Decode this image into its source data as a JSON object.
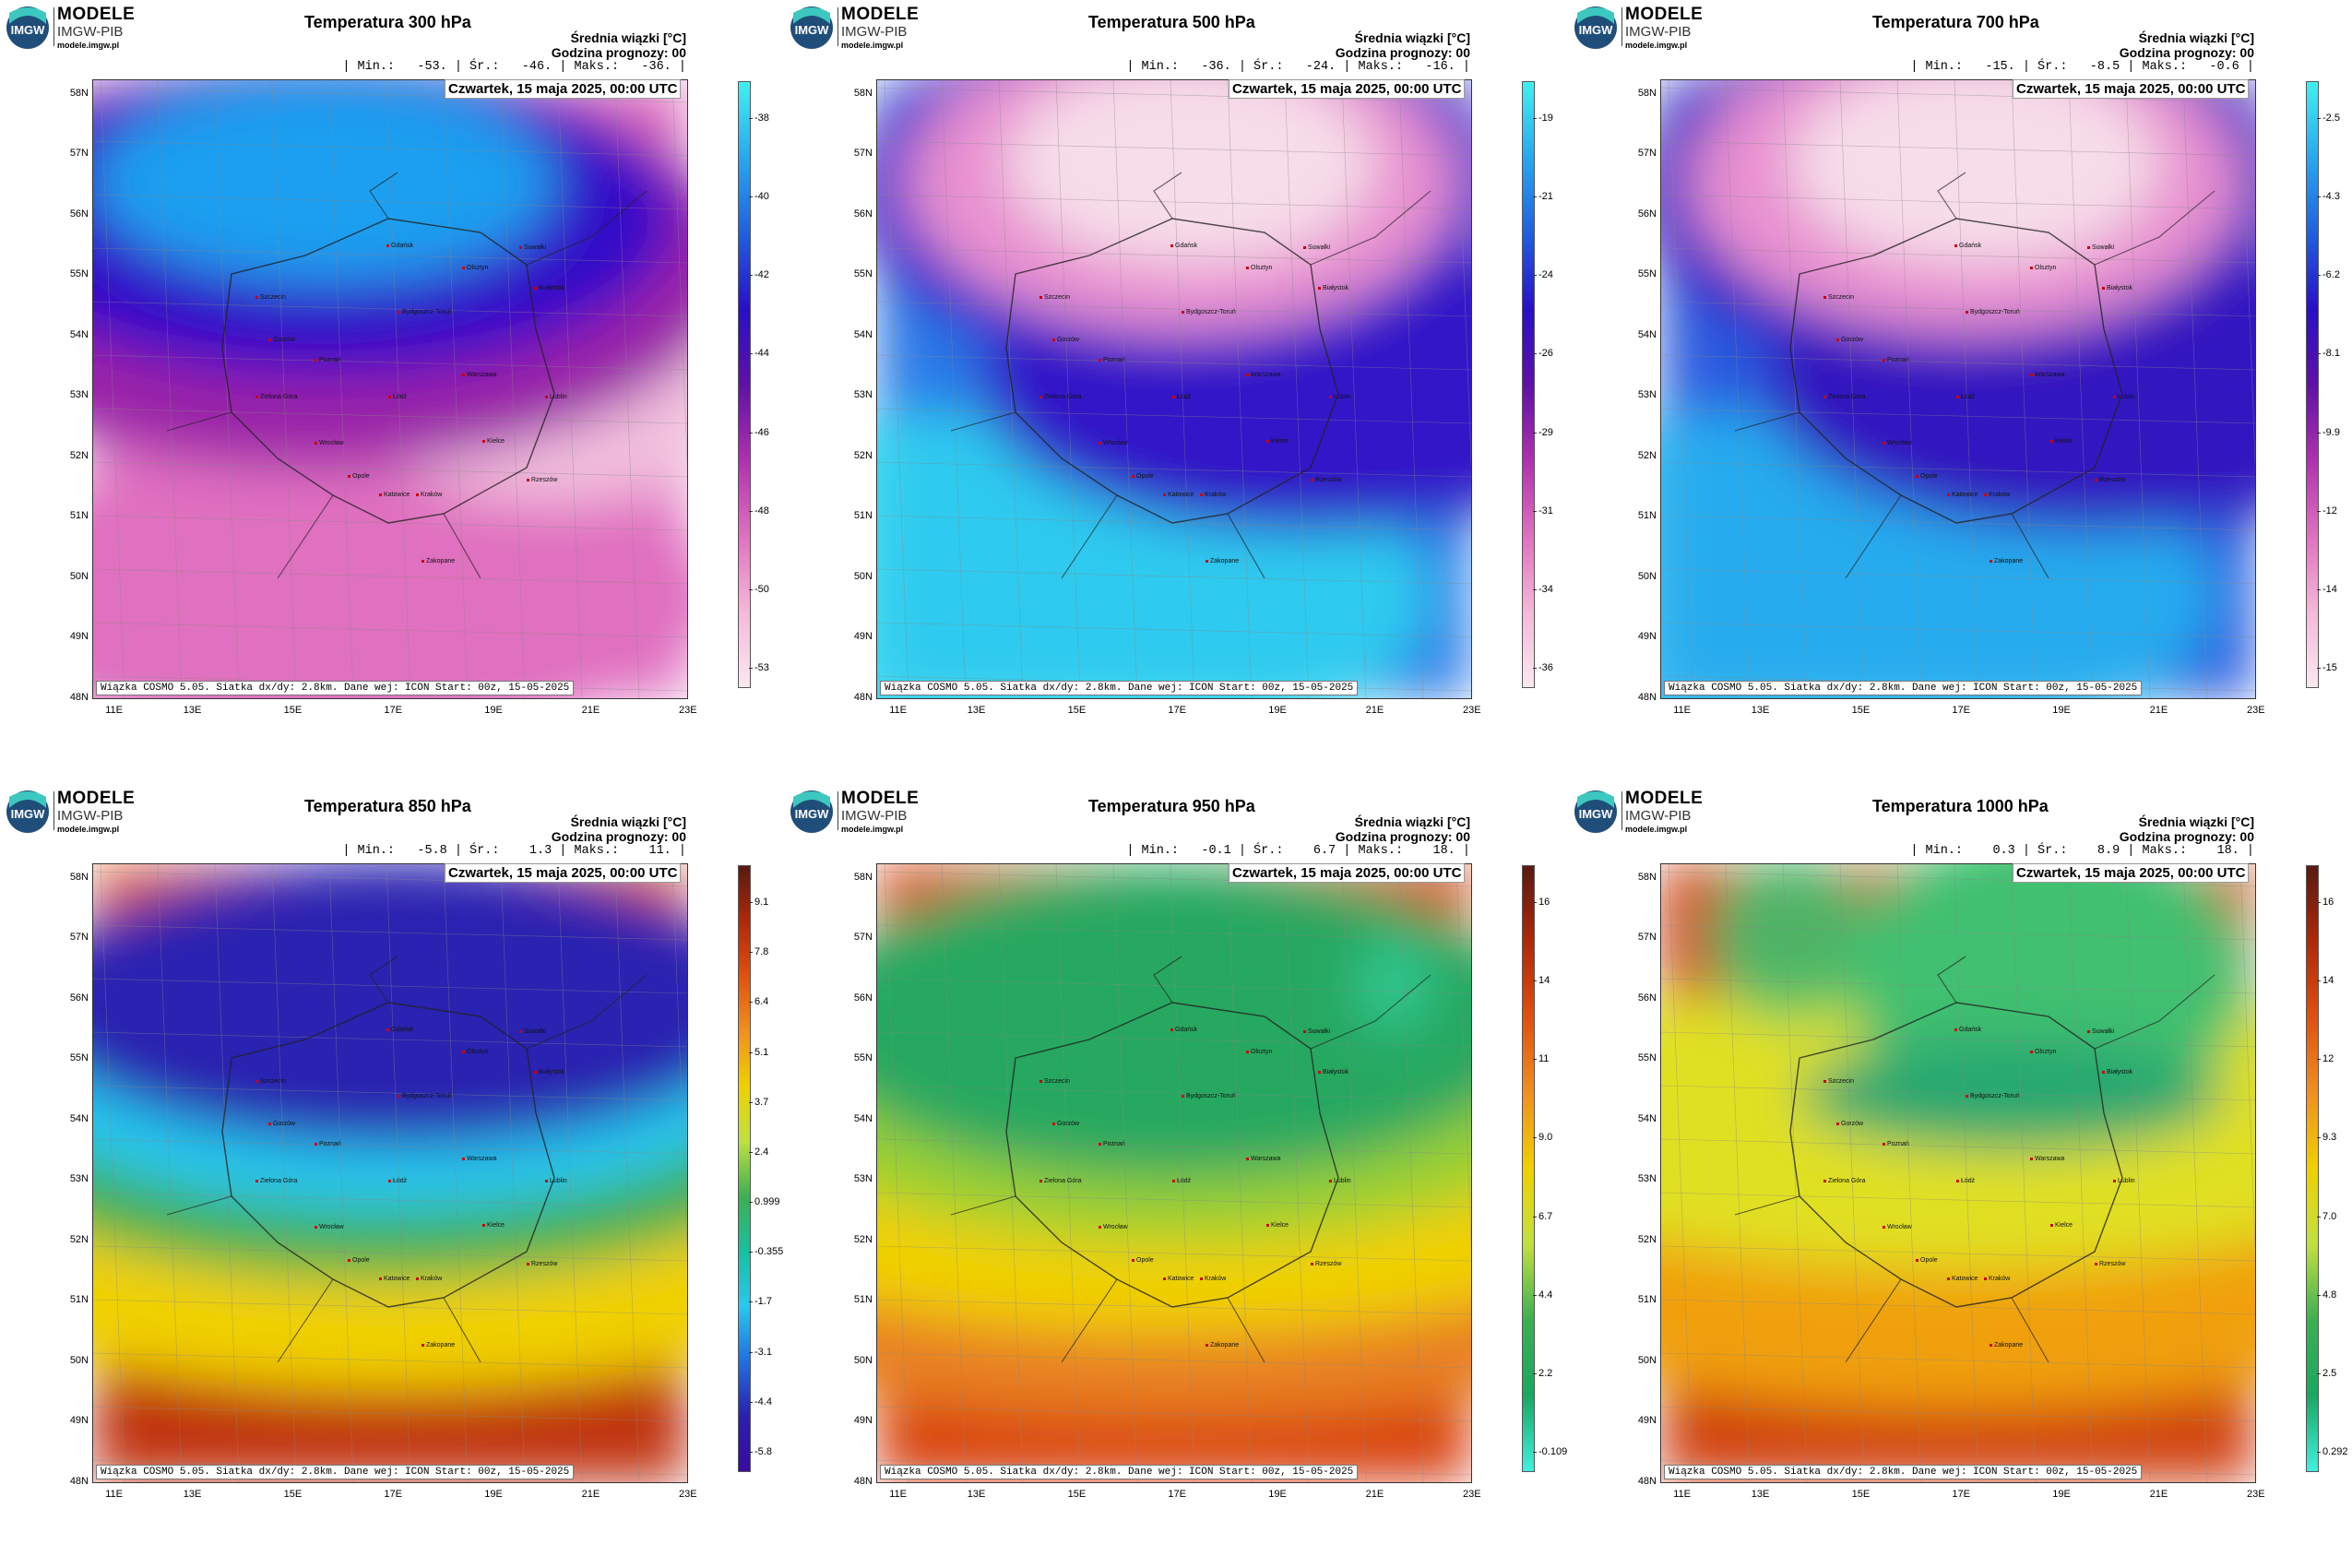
{
  "common": {
    "brand_line1": "MODELE",
    "brand_line2": "IMGW-PIB",
    "brand_url": "modele.imgw.pl",
    "logo_text": "IMGW",
    "mean_label": "Średnia wiązki [°C]",
    "forecast_hour": "Godzina prognozy: 00",
    "date": "Czwartek, 15 maja 2025, 00:00 UTC",
    "footer": "Wiązka COSMO 5.05. Siatka dx/dy: 2.8km. Dane wej: ICON Start: 00z, 15-05-2025",
    "lat_labels": [
      "58N",
      "57N",
      "56N",
      "55N",
      "54N",
      "53N",
      "52N",
      "51N",
      "50N",
      "49N",
      "48N"
    ],
    "lon_labels": [
      "11E",
      "13E",
      "15E",
      "17E",
      "19E",
      "21E",
      "23E"
    ]
  },
  "cities": [
    {
      "name": "Gdańsk"
    },
    {
      "name": "Olsztyn"
    },
    {
      "name": "Suwałki"
    },
    {
      "name": "Białystok"
    },
    {
      "name": "Szczecin"
    },
    {
      "name": "Bydgoszcz-Toruń"
    },
    {
      "name": "Gorzów"
    },
    {
      "name": "Poznań"
    },
    {
      "name": "Warszawa"
    },
    {
      "name": "Zielona Góra"
    },
    {
      "name": "Łódź"
    },
    {
      "name": "Lublin"
    },
    {
      "name": "Wrocław"
    },
    {
      "name": "Kielce"
    },
    {
      "name": "Opole"
    },
    {
      "name": "Katowice"
    },
    {
      "name": "Kraków"
    },
    {
      "name": "Rzeszów"
    },
    {
      "name": "Zakopane"
    }
  ],
  "panels": [
    {
      "title": "Temperatura 300 hPa",
      "stats": "| Min.:   -53. | Śr.:   -46. | Maks.:   -36. |",
      "colorbar_ticks": [
        "-38",
        "-40",
        "-42",
        "-44",
        "-46",
        "-48",
        "-50",
        "-53"
      ],
      "colors": {
        "c1": "#1e9ff0",
        "c2": "#3010c8",
        "c3": "#9a20a8",
        "c4": "#e070c0",
        "c5": "#f4c8e0"
      }
    },
    {
      "title": "Temperatura 500 hPa",
      "stats": "| Min.:   -36. | Śr.:   -24. | Maks.:   -16. |",
      "colorbar_ticks": [
        "-19",
        "-21",
        "-24",
        "-26",
        "-29",
        "-31",
        "-34",
        "-36"
      ],
      "colors": {
        "c1": "#30d8f0",
        "c2": "#2a7ae8",
        "c3": "#3018c8",
        "c4": "#e890d0",
        "c5": "#f6dde8"
      }
    },
    {
      "title": "Temperatura 700 hPa",
      "stats": "| Min.:   -15. | Śr.:   -8.5 | Maks.:   -0.6 |",
      "colorbar_ticks": [
        "-2.5",
        "-4.3",
        "-6.2",
        "-8.1",
        "-9.9",
        "-12",
        "-14",
        "-15"
      ],
      "colors": {
        "c1": "#28b8f0",
        "c2": "#2a5ce0",
        "c3": "#3218c0",
        "c4": "#e890d0",
        "c5": "#f6dde8"
      }
    },
    {
      "title": "Temperatura 850 hPa",
      "stats": "| Min.:   -5.8 | Śr.:    1.3 | Maks.:    11. |",
      "colorbar_ticks": [
        "9.1",
        "7.8",
        "6.4",
        "5.1",
        "3.7",
        "2.4",
        "0.999",
        "-0.355",
        "-1.7",
        "-3.1",
        "-4.4",
        "-5.8"
      ],
      "colors": {
        "c1": "#2a20b0",
        "c2": "#28c8f0",
        "c3": "#3cb050",
        "c4": "#f0d000",
        "c5": "#e06010"
      }
    },
    {
      "title": "Temperatura 950 hPa",
      "stats": "| Min.:   -0.1 | Śr.:    6.7 | Maks.:    18. |",
      "colorbar_ticks": [
        "16",
        "14",
        "11",
        "9.0",
        "6.7",
        "4.4",
        "2.2",
        "-0.109"
      ],
      "colors": {
        "c1": "#30c890",
        "c2": "#28a860",
        "c3": "#9ad030",
        "c4": "#f0d000",
        "c5": "#d84010"
      }
    },
    {
      "title": "Temperatura 1000 hPa",
      "stats": "| Min.:    0.3 | Śr.:    8.9 | Maks.:    18. |",
      "colorbar_ticks": [
        "16",
        "14",
        "12",
        "9.3",
        "7.0",
        "4.8",
        "2.5",
        "0.292"
      ],
      "colors": {
        "c1": "#28a870",
        "c2": "#40c070",
        "c3": "#e0e020",
        "c4": "#f0a010",
        "c5": "#d04010"
      }
    }
  ]
}
